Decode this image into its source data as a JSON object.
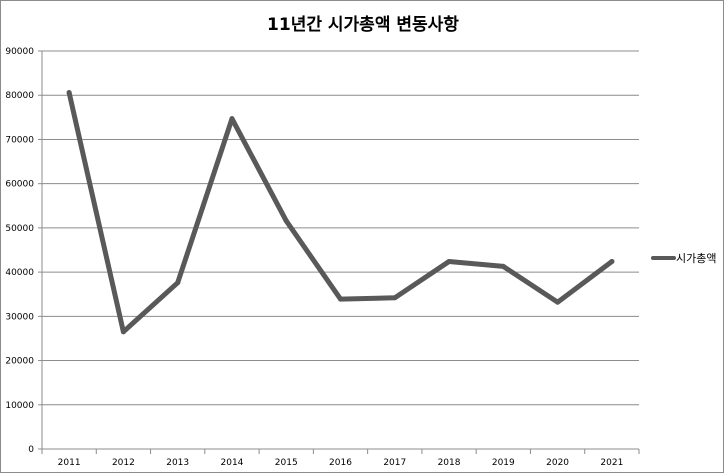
{
  "chart_data": {
    "type": "line",
    "title": "11년간 시가총액 변동사항",
    "xlabel": "",
    "ylabel": "",
    "categories": [
      "2011",
      "2012",
      "2013",
      "2014",
      "2015",
      "2016",
      "2017",
      "2018",
      "2019",
      "2020",
      "2021"
    ],
    "series": [
      {
        "name": "시가총액",
        "values": [
          80600,
          26500,
          37600,
          74700,
          51600,
          33900,
          34200,
          42400,
          41300,
          33200,
          42400
        ],
        "color": "#595959"
      }
    ],
    "ylim": [
      0,
      90000
    ],
    "yticks": [
      "0",
      "10000",
      "20000",
      "30000",
      "40000",
      "50000",
      "60000",
      "70000",
      "80000",
      "90000"
    ],
    "grid": true,
    "legend_position": "right"
  }
}
